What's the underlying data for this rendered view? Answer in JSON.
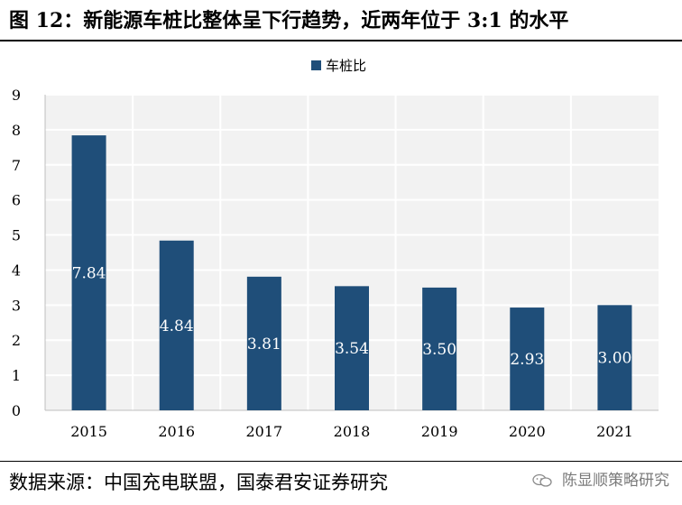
{
  "figure": {
    "title": "图 12：新能源车桩比整体呈下行趋势，近两年位于 3:1 的水平",
    "source": "数据来源：中国充电联盟，国泰君安证券研究",
    "watermark": "陈显顺策略研究"
  },
  "chart_data": {
    "type": "bar",
    "title": "",
    "xlabel": "",
    "ylabel": "",
    "categories": [
      "2015",
      "2016",
      "2017",
      "2018",
      "2019",
      "2020",
      "2021"
    ],
    "series": [
      {
        "name": "车桩比",
        "values": [
          7.84,
          4.84,
          3.81,
          3.54,
          3.5,
          2.93,
          3.0
        ],
        "color": "#1f4e79"
      }
    ],
    "data_labels": [
      "7.84",
      "4.84",
      "3.81",
      "3.54",
      "3.50",
      "2.93",
      "3.00"
    ],
    "ylim": [
      0,
      9
    ],
    "yticks": [
      0,
      1,
      2,
      3,
      4,
      5,
      6,
      7,
      8,
      9
    ],
    "grid": true,
    "legend_position": "top-center",
    "plot_background": "#f2f2f2",
    "grid_color": "#ffffff"
  }
}
